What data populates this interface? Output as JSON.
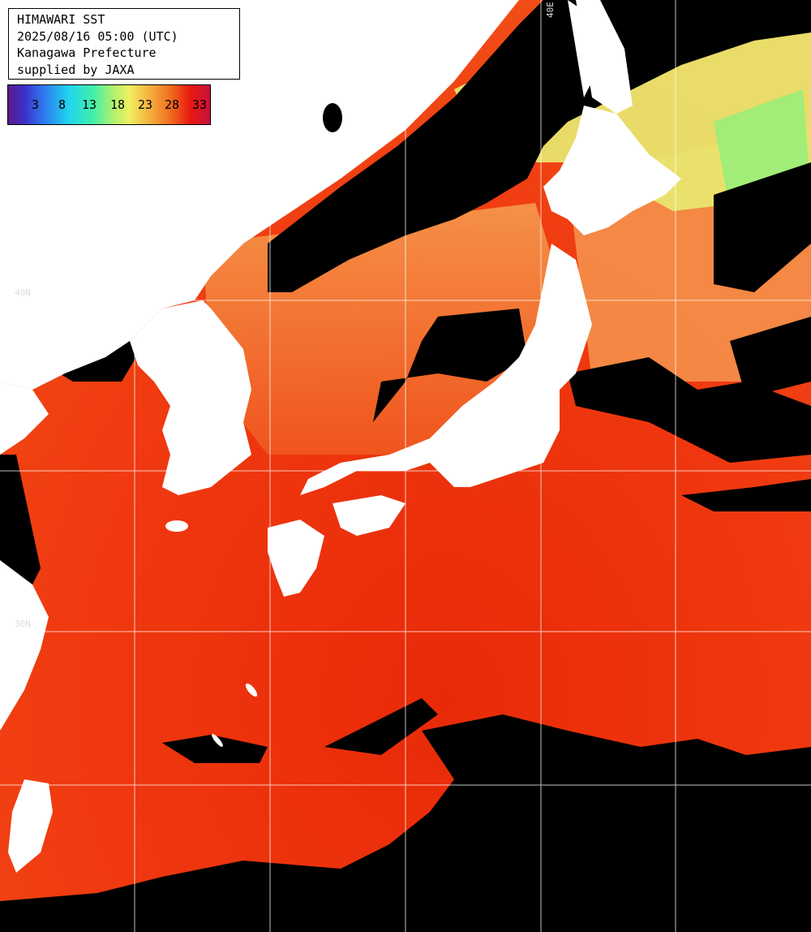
{
  "info": {
    "title": "HIMAWARI SST",
    "datetime": "2025/08/16 05:00 (UTC)",
    "region": "Kanagawa Prefecture",
    "credit": "supplied by JAXA"
  },
  "scale": {
    "labels": [
      "3",
      "8",
      "13",
      "18",
      "23",
      "28",
      "33"
    ]
  },
  "grid_labels": {
    "lat_40": "40N",
    "lat_30": "30N",
    "lon_label": "40E"
  },
  "colors": {
    "land": "#ffffff",
    "cloud": "#000000",
    "sea_warm": "#f03a10",
    "sea_mild": "#f08a40",
    "sea_cool": "#e0f060",
    "grid": "#ffffff"
  }
}
